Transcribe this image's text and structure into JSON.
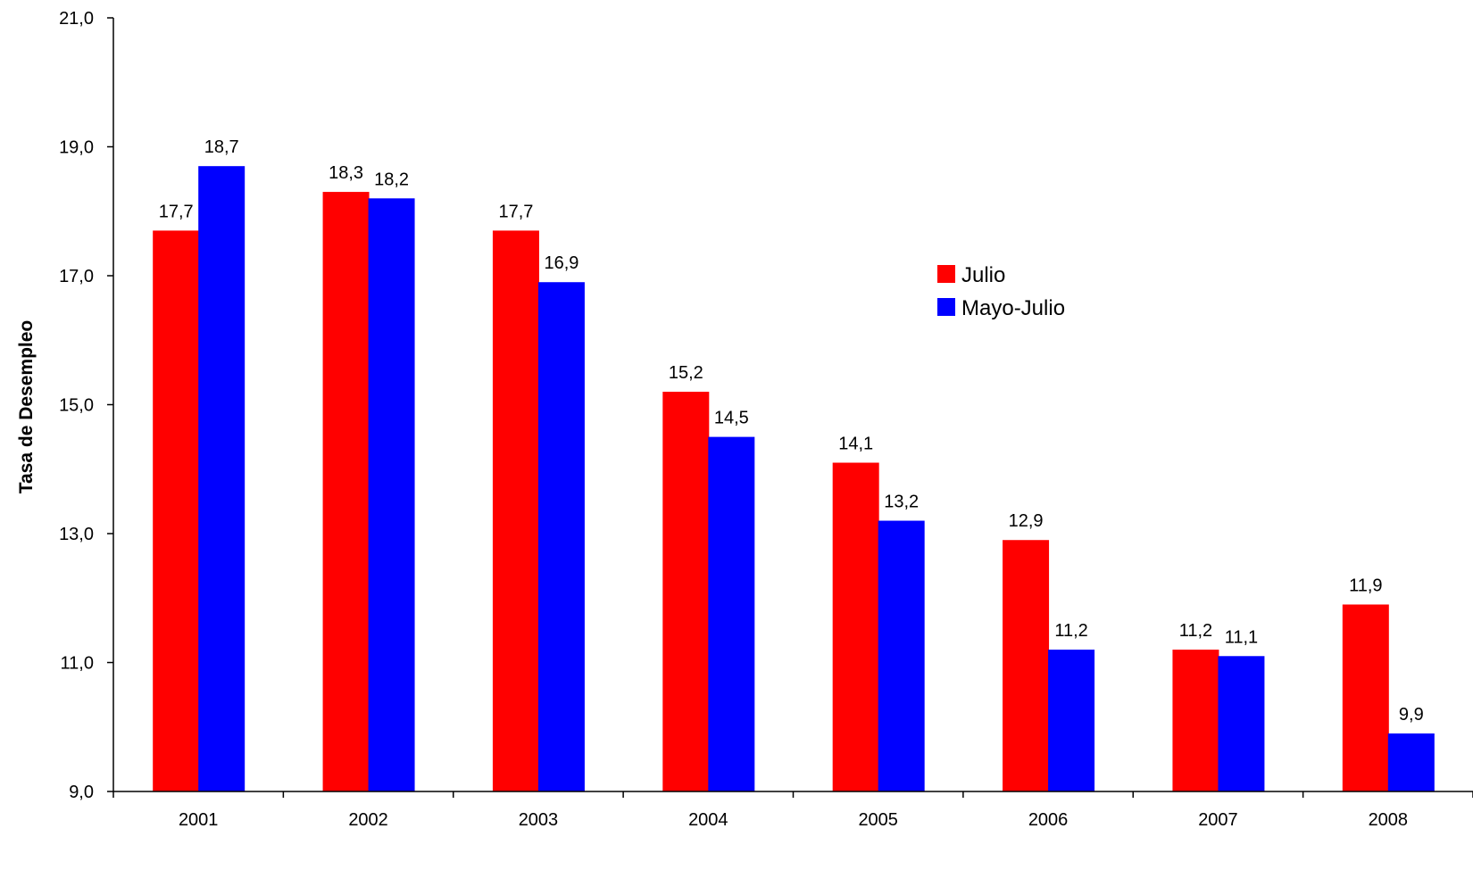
{
  "chart_data": {
    "type": "bar",
    "title": "",
    "xlabel": "",
    "ylabel": "Tasa de Desempleo",
    "categories": [
      "2001",
      "2002",
      "2003",
      "2004",
      "2005",
      "2006",
      "2007",
      "2008"
    ],
    "series": [
      {
        "name": "Julio",
        "color": "#ff0000",
        "values": [
          17.7,
          18.3,
          17.7,
          15.2,
          14.1,
          12.9,
          11.2,
          11.9
        ],
        "labels": [
          "17,7",
          "18,3",
          "17,7",
          "15,2",
          "14,1",
          "12,9",
          "11,2",
          "11,9"
        ]
      },
      {
        "name": "Mayo-Julio",
        "color": "#0000ff",
        "values": [
          18.7,
          18.2,
          16.9,
          14.5,
          13.2,
          11.2,
          11.1,
          9.9
        ],
        "labels": [
          "18,7",
          "18,2",
          "16,9",
          "14,5",
          "13,2",
          "11,2",
          "11,1",
          "9,9"
        ]
      }
    ],
    "ylim": [
      9,
      21
    ],
    "yticks": [
      9,
      11,
      13,
      15,
      17,
      19,
      21
    ],
    "ytick_labels": [
      "9,0",
      "11,0",
      "13,0",
      "15,0",
      "17,0",
      "19,0",
      "21,0"
    ],
    "grid": false,
    "legend_position": "right-center"
  }
}
